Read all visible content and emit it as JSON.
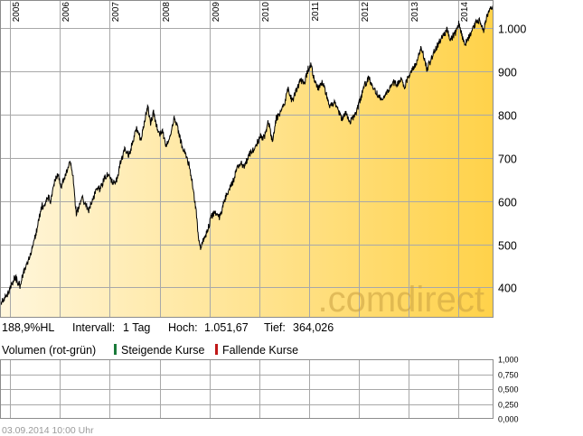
{
  "chart_data": [
    {
      "type": "area",
      "x_labels": [
        "2005",
        "2006",
        "2007",
        "2008",
        "2009",
        "2010",
        "2011",
        "2012",
        "2013",
        "2014"
      ],
      "y_ticks": [
        400,
        500,
        600,
        700,
        800,
        900,
        1000
      ],
      "y_tick_labels": [
        "400",
        "500",
        "600",
        "700",
        "800",
        "900",
        "1.000"
      ],
      "ylim": [
        330,
        1065
      ],
      "xlim": [
        2004.8,
        2014.68
      ],
      "grid": true,
      "series": [
        {
          "points": [
            [
              2004.8,
              365
            ],
            [
              2004.92,
              378
            ],
            [
              2005.02,
              402
            ],
            [
              2005.1,
              425
            ],
            [
              2005.2,
              405
            ],
            [
              2005.3,
              445
            ],
            [
              2005.4,
              470
            ],
            [
              2005.48,
              505
            ],
            [
              2005.56,
              545
            ],
            [
              2005.64,
              590
            ],
            [
              2005.7,
              585
            ],
            [
              2005.75,
              610
            ],
            [
              2005.82,
              600
            ],
            [
              2005.9,
              650
            ],
            [
              2005.97,
              660
            ],
            [
              2006.02,
              630
            ],
            [
              2006.1,
              655
            ],
            [
              2006.2,
              690
            ],
            [
              2006.26,
              660
            ],
            [
              2006.33,
              570
            ],
            [
              2006.38,
              585
            ],
            [
              2006.44,
              608
            ],
            [
              2006.5,
              595
            ],
            [
              2006.58,
              580
            ],
            [
              2006.66,
              605
            ],
            [
              2006.74,
              625
            ],
            [
              2006.82,
              630
            ],
            [
              2006.9,
              655
            ],
            [
              2006.98,
              665
            ],
            [
              2007.06,
              640
            ],
            [
              2007.14,
              650
            ],
            [
              2007.22,
              690
            ],
            [
              2007.3,
              720
            ],
            [
              2007.38,
              705
            ],
            [
              2007.46,
              735
            ],
            [
              2007.54,
              770
            ],
            [
              2007.62,
              740
            ],
            [
              2007.7,
              785
            ],
            [
              2007.76,
              820
            ],
            [
              2007.82,
              780
            ],
            [
              2007.88,
              805
            ],
            [
              2007.94,
              775
            ],
            [
              2008.0,
              750
            ],
            [
              2008.06,
              765
            ],
            [
              2008.12,
              730
            ],
            [
              2008.2,
              740
            ],
            [
              2008.3,
              795
            ],
            [
              2008.36,
              770
            ],
            [
              2008.44,
              730
            ],
            [
              2008.52,
              710
            ],
            [
              2008.6,
              680
            ],
            [
              2008.66,
              640
            ],
            [
              2008.72,
              590
            ],
            [
              2008.78,
              520
            ],
            [
              2008.83,
              490
            ],
            [
              2008.88,
              510
            ],
            [
              2008.96,
              530
            ],
            [
              2009.04,
              565
            ],
            [
              2009.12,
              575
            ],
            [
              2009.2,
              560
            ],
            [
              2009.3,
              600
            ],
            [
              2009.38,
              625
            ],
            [
              2009.46,
              640
            ],
            [
              2009.54,
              670
            ],
            [
              2009.62,
              690
            ],
            [
              2009.7,
              675
            ],
            [
              2009.78,
              705
            ],
            [
              2009.86,
              715
            ],
            [
              2009.94,
              730
            ],
            [
              2010.02,
              750
            ],
            [
              2010.1,
              745
            ],
            [
              2010.18,
              785
            ],
            [
              2010.26,
              740
            ],
            [
              2010.34,
              790
            ],
            [
              2010.42,
              805
            ],
            [
              2010.5,
              820
            ],
            [
              2010.58,
              860
            ],
            [
              2010.66,
              830
            ],
            [
              2010.74,
              855
            ],
            [
              2010.82,
              880
            ],
            [
              2010.9,
              870
            ],
            [
              2010.98,
              905
            ],
            [
              2011.04,
              915
            ],
            [
              2011.1,
              880
            ],
            [
              2011.18,
              860
            ],
            [
              2011.26,
              875
            ],
            [
              2011.34,
              850
            ],
            [
              2011.42,
              815
            ],
            [
              2011.5,
              830
            ],
            [
              2011.58,
              810
            ],
            [
              2011.66,
              790
            ],
            [
              2011.74,
              805
            ],
            [
              2011.82,
              785
            ],
            [
              2011.9,
              795
            ],
            [
              2011.96,
              810
            ],
            [
              2012.04,
              840
            ],
            [
              2012.12,
              870
            ],
            [
              2012.2,
              885
            ],
            [
              2012.28,
              865
            ],
            [
              2012.36,
              850
            ],
            [
              2012.44,
              835
            ],
            [
              2012.52,
              845
            ],
            [
              2012.6,
              860
            ],
            [
              2012.68,
              875
            ],
            [
              2012.76,
              868
            ],
            [
              2012.84,
              880
            ],
            [
              2012.92,
              865
            ],
            [
              2013.0,
              890
            ],
            [
              2013.08,
              905
            ],
            [
              2013.16,
              920
            ],
            [
              2013.24,
              955
            ],
            [
              2013.3,
              935
            ],
            [
              2013.36,
              905
            ],
            [
              2013.44,
              925
            ],
            [
              2013.52,
              950
            ],
            [
              2013.6,
              965
            ],
            [
              2013.68,
              980
            ],
            [
              2013.76,
              995
            ],
            [
              2013.84,
              975
            ],
            [
              2013.92,
              985
            ],
            [
              2014.0,
              1012
            ],
            [
              2014.06,
              985
            ],
            [
              2014.12,
              960
            ],
            [
              2014.18,
              975
            ],
            [
              2014.26,
              990
            ],
            [
              2014.34,
              1010
            ],
            [
              2014.42,
              1020
            ],
            [
              2014.5,
              995
            ],
            [
              2014.56,
              1025
            ],
            [
              2014.62,
              1045
            ],
            [
              2014.68,
              1051.67
            ]
          ]
        }
      ]
    },
    {
      "type": "bar",
      "y_ticks": [
        0,
        0.25,
        0.5,
        0.75,
        1
      ],
      "y_tick_labels": [
        "0,000",
        "0,250",
        "0,500",
        "0,750",
        "1,000"
      ],
      "ylim": [
        0,
        1
      ],
      "grid": true,
      "series": []
    }
  ],
  "stats": {
    "change": "188,9%HL",
    "interval_label": "Intervall:",
    "interval_value": "1 Tag",
    "high_label": "Hoch:",
    "high_value": "1.051,67",
    "low_label": "Tief:",
    "low_value": "364,026"
  },
  "volume": {
    "label": "Volumen (rot-grün)",
    "rising_label": "Steigende Kurse",
    "falling_label": "Fallende Kurse"
  },
  "watermark": ".comdirect",
  "timestamp": "03.09.2014 10:00 Uhr",
  "colors": {
    "line": "#000000",
    "fill_light": "#fff6dc",
    "fill_dark": "#ffd24a",
    "grid": "#a8a8a8",
    "rising": "#1a7a3a",
    "falling": "#c01818",
    "watermark": "#c9a040",
    "timestamp": "#9a9a9a"
  }
}
